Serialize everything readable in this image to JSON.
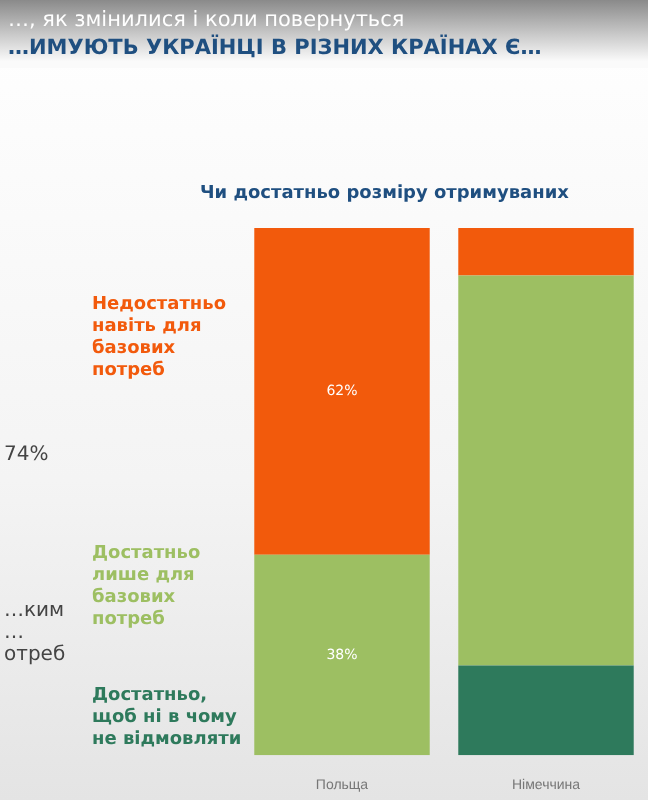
{
  "chart_data": {
    "type": "bar",
    "stacked": true,
    "title": "Чи достатньо розміру отримуваних",
    "subtitle": "…, як змінилися і коли повернуться",
    "annotations": [
      "…ИМУЮТЬ УКРАЇНЦІ В РІЗНИХ КРАЇНАХ Є…",
      "74%",
      "…ким …отреб"
    ],
    "categories": [
      "Польща",
      "Німеччина"
    ],
    "ylim": [
      0,
      100
    ],
    "series": [
      {
        "name": "Достатньо, щоб ні в чому не відмовляти",
        "color": "#2e7a5c",
        "values": [
          null,
          17
        ]
      },
      {
        "name": "Достатньо лише для базових потреб",
        "color": "#9dbf62",
        "values": [
          38,
          74
        ],
        "value_labels": [
          "38%",
          null
        ]
      },
      {
        "name": "Недостатньо навіть для базових потреб",
        "color": "#f25a0c",
        "values": [
          62,
          9
        ],
        "value_labels": [
          "62%",
          null
        ]
      }
    ]
  }
}
